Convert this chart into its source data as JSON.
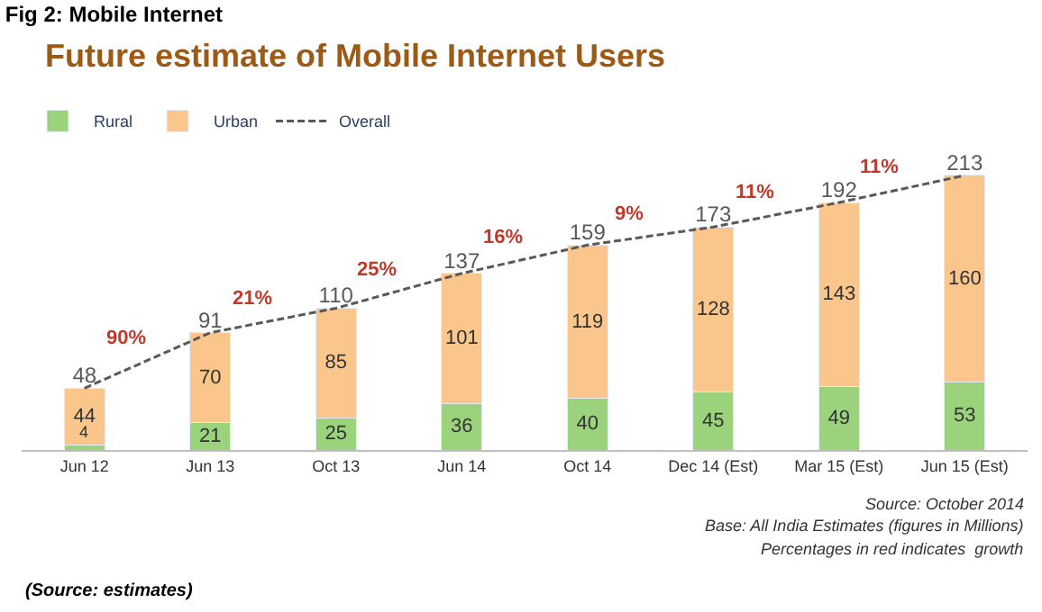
{
  "chart_data": {
    "type": "bar",
    "stacked": true,
    "title": "Fig 2: Mobile Internet",
    "subtitle": "Future estimate of Mobile Internet Users",
    "categories": [
      "Jun 12",
      "Jun 13",
      "Oct 13",
      "Jun 14",
      "Oct 14",
      "Dec 14 (Est)",
      "Mar 15 (Est)",
      "Jun 15 (Est)"
    ],
    "series": [
      {
        "name": "Rural",
        "color": "#9bd37c",
        "values": [
          4,
          21,
          25,
          36,
          40,
          45,
          49,
          53
        ]
      },
      {
        "name": "Urban",
        "color": "#fac68c",
        "values": [
          44,
          70,
          85,
          101,
          119,
          128,
          143,
          160
        ]
      },
      {
        "name": "Overall",
        "type": "line",
        "color": "#595959",
        "line_style": "dashed",
        "marker": "none",
        "values": [
          48,
          91,
          110,
          137,
          159,
          173,
          192,
          213
        ]
      }
    ],
    "tick_labels": "x",
    "data_labels": true,
    "legend": "top left",
    "annotations": [
      "90%",
      "21%",
      "25%",
      "16%",
      "9%",
      "11%",
      "11%",
      "Source: October 2014",
      "Base: All India Estimates (figures in Millions)",
      "Percentages in red indicates  growth",
      "(Source: estimates)"
    ]
  }
}
